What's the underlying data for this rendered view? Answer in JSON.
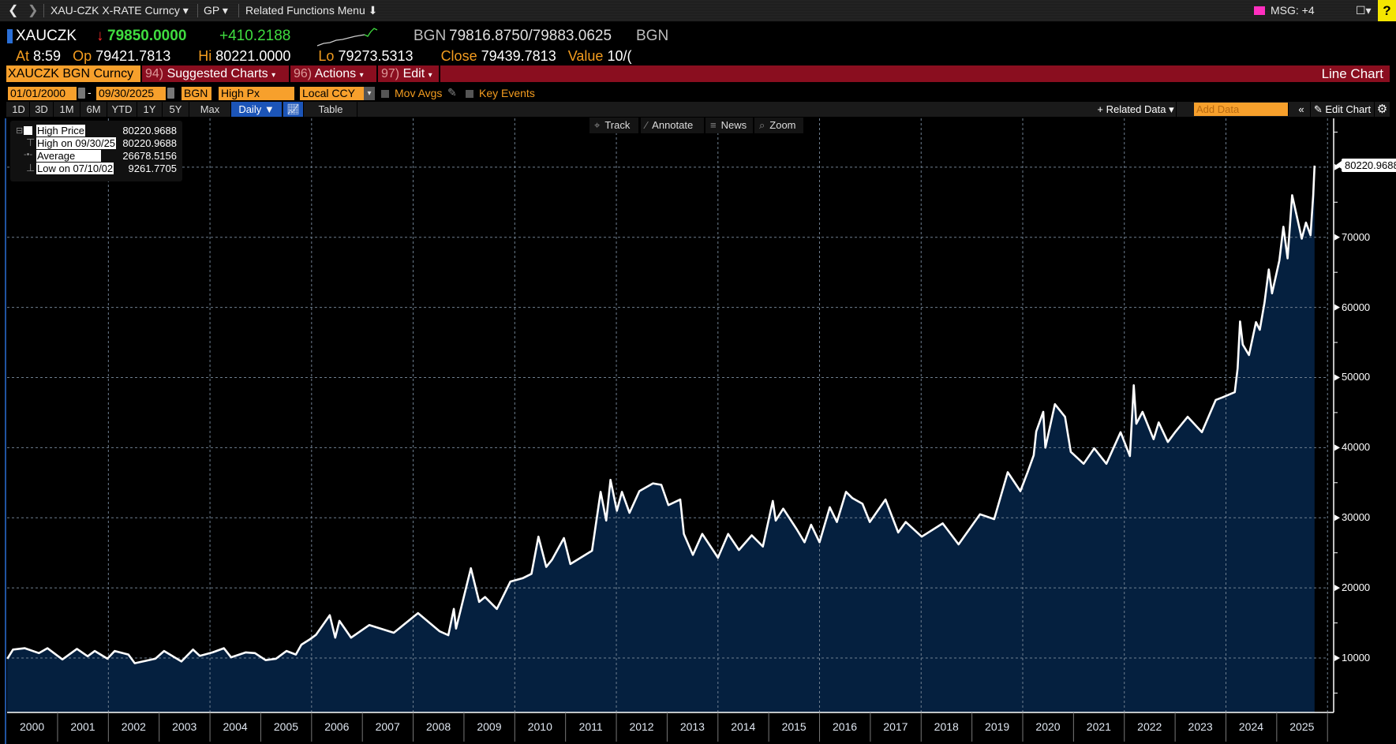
{
  "topbar": {
    "security": "XAU-CZK X-RATE Curncy ▾",
    "function": "GP ▾",
    "related": "Related Functions Menu",
    "msg": "MSG: +4",
    "help": "?"
  },
  "quote": {
    "ticker": "XAUCZK",
    "last": "79850.0000",
    "change": "+410.2188",
    "bid_ask_src": "BGN",
    "bid_ask": "79816.8750/79883.0625",
    "bid_ask_src2": "BGN",
    "at_label": "At",
    "at": "8:59",
    "op_label": "Op",
    "op": "79421.7813",
    "hi_label": "Hi",
    "hi": "80221.0000",
    "lo_label": "Lo",
    "lo": "79273.5313",
    "close_label": "Close",
    "close": "79439.7813",
    "value_label": "Value",
    "value": "10/("
  },
  "menubar": {
    "security": "XAUCZK BGN Curncy",
    "suggested_num": "94)",
    "suggested": "Suggested Charts",
    "actions_num": "96)",
    "actions": "Actions",
    "edit_num": "97)",
    "edit": "Edit",
    "title": "Line Chart"
  },
  "controls": {
    "start_date": "01/01/2000",
    "end_date": "09/30/2025",
    "source": "BGN",
    "field": "High Px",
    "currency": "Local CCY",
    "mov_avgs": "Mov Avgs",
    "key_events": "Key Events"
  },
  "periods": [
    "1D",
    "3D",
    "1M",
    "6M",
    "YTD",
    "1Y",
    "5Y",
    "Max"
  ],
  "frequency": "Daily ▼",
  "table_label": "Table",
  "right_tools": {
    "related_data": "+ Related Data ▾",
    "add_data_placeholder": "Add Data",
    "edit_chart": "Edit Chart"
  },
  "chart_tools": [
    "Track",
    "Annotate",
    "News",
    "Zoom"
  ],
  "legend": {
    "series": "High Price",
    "series_value": "80220.9688",
    "high_label": "High on 09/30/25",
    "high_value": "80220.9688",
    "avg_label": "Average",
    "avg_value": "26678.5156",
    "low_label": "Low on 07/10/02",
    "low_value": "9261.7705"
  },
  "colors": {
    "fill": "#05203f",
    "line": "#ffffff",
    "orange": "#f7a02c",
    "menu_red": "#8a0e1f",
    "up_green": "#3fdc3f"
  },
  "chart_data": {
    "type": "area",
    "series": [
      {
        "name": "High Price"
      }
    ],
    "last_value_label": "80220.9688",
    "ylim": [
      2237,
      86400
    ],
    "yticks": [
      "10000",
      "20000",
      "30000",
      "40000",
      "50000",
      "60000",
      "70000"
    ],
    "xticks": [
      "2000",
      "2001",
      "2002",
      "2003",
      "2004",
      "2005",
      "2006",
      "2007",
      "2008",
      "2009",
      "2010",
      "2011",
      "2012",
      "2013",
      "2014",
      "2015",
      "2016",
      "2017",
      "2018",
      "2019",
      "2020",
      "2021",
      "2022",
      "2023",
      "2024",
      "2025"
    ],
    "xlim": [
      "2000-01-01",
      "2026-01-01"
    ],
    "grid": true,
    "points": [
      [
        "2000-01-05",
        9900
      ],
      [
        "2000-02-15",
        11200
      ],
      [
        "2000-05-10",
        11400
      ],
      [
        "2000-08-20",
        10700
      ],
      [
        "2000-10-20",
        11400
      ],
      [
        "2001-02-05",
        9800
      ],
      [
        "2001-05-20",
        11300
      ],
      [
        "2001-08-05",
        10250
      ],
      [
        "2001-09-25",
        11000
      ],
      [
        "2001-12-25",
        9900
      ],
      [
        "2002-02-15",
        11000
      ],
      [
        "2002-05-25",
        10500
      ],
      [
        "2002-07-10",
        9262
      ],
      [
        "2002-12-05",
        9900
      ],
      [
        "2003-02-05",
        11000
      ],
      [
        "2003-06-10",
        9500
      ],
      [
        "2003-09-01",
        11200
      ],
      [
        "2003-10-20",
        10300
      ],
      [
        "2004-01-20",
        10800
      ],
      [
        "2004-04-10",
        11400
      ],
      [
        "2004-06-01",
        10100
      ],
      [
        "2004-09-15",
        10800
      ],
      [
        "2004-11-20",
        10700
      ],
      [
        "2005-02-05",
        9700
      ],
      [
        "2005-04-20",
        9900
      ],
      [
        "2005-07-05",
        11000
      ],
      [
        "2005-09-10",
        10500
      ],
      [
        "2005-10-20",
        11900
      ],
      [
        "2005-12-15",
        12600
      ],
      [
        "2006-02-01",
        13300
      ],
      [
        "2006-05-12",
        16100
      ],
      [
        "2006-06-20",
        12900
      ],
      [
        "2006-07-20",
        15300
      ],
      [
        "2006-10-12",
        12900
      ],
      [
        "2007-02-20",
        14700
      ],
      [
        "2007-08-15",
        13600
      ],
      [
        "2008-02-05",
        16400
      ],
      [
        "2008-07-10",
        13800
      ],
      [
        "2008-09-10",
        13250
      ],
      [
        "2008-10-20",
        17000
      ],
      [
        "2008-11-05",
        14200
      ],
      [
        "2009-02-20",
        22800
      ],
      [
        "2009-04-20",
        18000
      ],
      [
        "2009-06-01",
        18700
      ],
      [
        "2009-08-25",
        17000
      ],
      [
        "2009-12-01",
        20900
      ],
      [
        "2010-03-01",
        21400
      ],
      [
        "2010-05-01",
        22000
      ],
      [
        "2010-06-20",
        27300
      ],
      [
        "2010-08-15",
        23000
      ],
      [
        "2010-09-25",
        24000
      ],
      [
        "2010-12-20",
        27100
      ],
      [
        "2011-02-05",
        23400
      ],
      [
        "2011-07-10",
        25300
      ],
      [
        "2011-09-10",
        33700
      ],
      [
        "2011-10-20",
        29600
      ],
      [
        "2011-11-20",
        35400
      ],
      [
        "2012-01-05",
        31000
      ],
      [
        "2012-02-10",
        33700
      ],
      [
        "2012-04-05",
        30700
      ],
      [
        "2012-06-15",
        33800
      ],
      [
        "2012-09-20",
        34900
      ],
      [
        "2012-11-20",
        34700
      ],
      [
        "2013-01-10",
        31800
      ],
      [
        "2013-04-05",
        32600
      ],
      [
        "2013-05-01",
        27700
      ],
      [
        "2013-07-05",
        24700
      ],
      [
        "2013-09-10",
        27700
      ],
      [
        "2014-01-01",
        24300
      ],
      [
        "2014-03-15",
        27700
      ],
      [
        "2014-06-01",
        25400
      ],
      [
        "2014-09-01",
        27500
      ],
      [
        "2014-11-20",
        25900
      ],
      [
        "2015-01-30",
        32400
      ],
      [
        "2015-02-20",
        29600
      ],
      [
        "2015-04-15",
        31300
      ],
      [
        "2015-07-20",
        28400
      ],
      [
        "2015-09-15",
        26500
      ],
      [
        "2015-11-01",
        29000
      ],
      [
        "2016-01-01",
        26500
      ],
      [
        "2016-03-15",
        31500
      ],
      [
        "2016-05-05",
        29400
      ],
      [
        "2016-07-10",
        33700
      ],
      [
        "2016-08-25",
        32800
      ],
      [
        "2016-11-05",
        32000
      ],
      [
        "2016-12-28",
        29400
      ],
      [
        "2017-04-20",
        32600
      ],
      [
        "2017-07-20",
        27900
      ],
      [
        "2017-09-12",
        29400
      ],
      [
        "2018-01-05",
        27300
      ],
      [
        "2018-06-05",
        29200
      ],
      [
        "2018-09-27",
        26200
      ],
      [
        "2019-02-28",
        30500
      ],
      [
        "2019-06-10",
        29800
      ],
      [
        "2019-09-15",
        36500
      ],
      [
        "2019-12-15",
        33800
      ],
      [
        "2020-02-05",
        36500
      ],
      [
        "2020-03-20",
        38900
      ],
      [
        "2020-04-07",
        42300
      ],
      [
        "2020-05-28",
        45100
      ],
      [
        "2020-06-12",
        40000
      ],
      [
        "2020-08-20",
        46200
      ],
      [
        "2020-11-01",
        44400
      ],
      [
        "2020-12-12",
        39400
      ],
      [
        "2021-03-15",
        37700
      ],
      [
        "2021-05-30",
        39900
      ],
      [
        "2021-08-25",
        37700
      ],
      [
        "2021-12-05",
        42200
      ],
      [
        "2022-02-10",
        38800
      ],
      [
        "2022-03-10",
        48900
      ],
      [
        "2022-03-28",
        43400
      ],
      [
        "2022-05-12",
        45100
      ],
      [
        "2022-07-30",
        41200
      ],
      [
        "2022-09-05",
        43600
      ],
      [
        "2022-11-10",
        40800
      ],
      [
        "2023-01-05",
        42300
      ],
      [
        "2023-04-01",
        44400
      ],
      [
        "2023-07-12",
        42200
      ],
      [
        "2023-10-20",
        46800
      ],
      [
        "2023-12-10",
        47200
      ],
      [
        "2024-03-05",
        47900
      ],
      [
        "2024-03-25",
        51300
      ],
      [
        "2024-04-12",
        58000
      ],
      [
        "2024-05-01",
        54700
      ],
      [
        "2024-06-15",
        53200
      ],
      [
        "2024-08-05",
        57900
      ],
      [
        "2024-09-01",
        56800
      ],
      [
        "2024-10-05",
        60700
      ],
      [
        "2024-11-05",
        65400
      ],
      [
        "2024-11-28",
        62000
      ],
      [
        "2025-01-20",
        66700
      ],
      [
        "2025-02-18",
        71500
      ],
      [
        "2025-03-20",
        67000
      ],
      [
        "2025-04-22",
        76000
      ],
      [
        "2025-06-30",
        69800
      ],
      [
        "2025-07-30",
        72100
      ],
      [
        "2025-09-01",
        70300
      ],
      [
        "2025-09-20",
        76000
      ],
      [
        "2025-09-30",
        80221
      ]
    ]
  }
}
